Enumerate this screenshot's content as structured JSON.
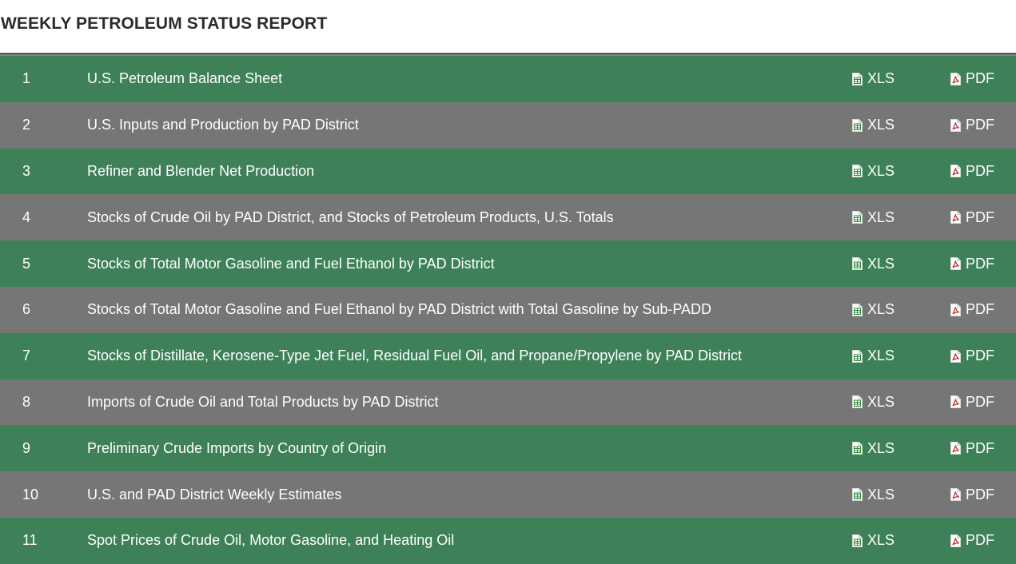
{
  "header": {
    "title": "WEEKLY PETROLEUM STATUS REPORT"
  },
  "colors": {
    "row_green": "#3e8158",
    "row_gray": "#767676",
    "xls_icon_accent": "#2e8b3a",
    "pdf_icon_accent": "#c0282d"
  },
  "icons": {
    "xls": "spreadsheet-file-icon",
    "pdf": "pdf-file-icon"
  },
  "table": {
    "rows": [
      {
        "number": "1",
        "name": "U.S. Petroleum Balance Sheet",
        "xls_label": "XLS",
        "pdf_label": "PDF"
      },
      {
        "number": "2",
        "name": "U.S. Inputs and Production by PAD District",
        "xls_label": "XLS",
        "pdf_label": "PDF"
      },
      {
        "number": "3",
        "name": "Refiner and Blender Net Production",
        "xls_label": "XLS",
        "pdf_label": "PDF"
      },
      {
        "number": "4",
        "name": "Stocks of Crude Oil by PAD District, and Stocks of Petroleum Products, U.S. Totals",
        "xls_label": "XLS",
        "pdf_label": "PDF"
      },
      {
        "number": "5",
        "name": "Stocks of Total Motor Gasoline and Fuel Ethanol by PAD District",
        "xls_label": "XLS",
        "pdf_label": "PDF"
      },
      {
        "number": "6",
        "name": "Stocks of Total Motor Gasoline and Fuel Ethanol by PAD District with Total Gasoline by Sub-PADD",
        "xls_label": "XLS",
        "pdf_label": "PDF"
      },
      {
        "number": "7",
        "name": "Stocks of Distillate, Kerosene-Type Jet Fuel, Residual Fuel Oil, and Propane/Propylene by PAD District",
        "xls_label": "XLS",
        "pdf_label": "PDF"
      },
      {
        "number": "8",
        "name": "Imports of Crude Oil and Total Products by PAD District",
        "xls_label": "XLS",
        "pdf_label": "PDF"
      },
      {
        "number": "9",
        "name": "Preliminary Crude Imports by Country of Origin",
        "xls_label": "XLS",
        "pdf_label": "PDF"
      },
      {
        "number": "10",
        "name": "U.S. and PAD District Weekly Estimates",
        "xls_label": "XLS",
        "pdf_label": "PDF"
      },
      {
        "number": "11",
        "name": "Spot Prices of Crude Oil, Motor Gasoline, and Heating Oil",
        "xls_label": "XLS",
        "pdf_label": "PDF"
      }
    ]
  }
}
